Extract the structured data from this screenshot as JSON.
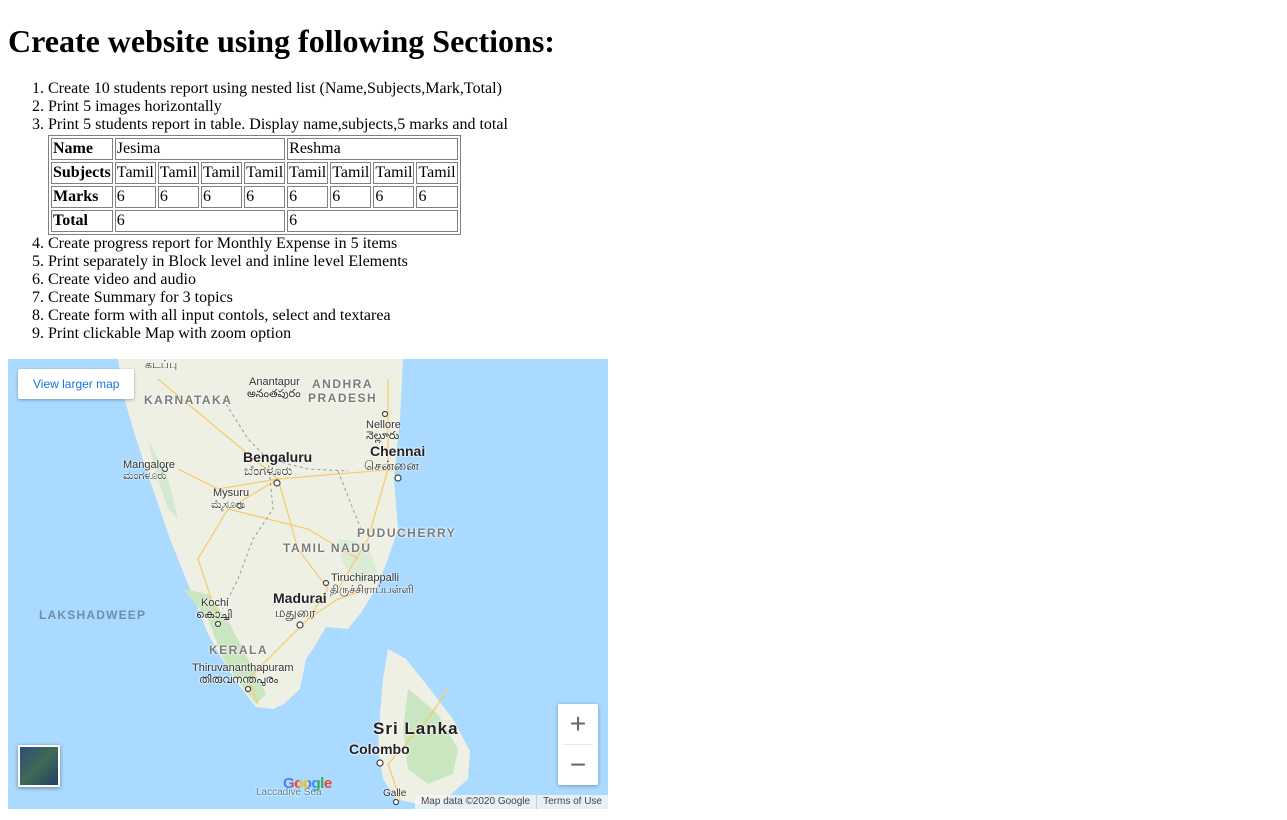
{
  "heading": "Create website using following Sections:",
  "sections": [
    "Create 10 students report using nested list (Name,Subjects,Mark,Total)",
    "Print 5 images horizontally",
    "Print 5 students report in table. Display name,subjects,5 marks and total",
    "Create progress report for Monthly Expense in 5 items",
    "Print separately in Block level and inline level Elements",
    "Create video and audio",
    "Create Summary for 3 topics",
    "Create form with all input contols, select and textarea",
    "Print clickable Map with zoom option"
  ],
  "table": {
    "name_label": "Name",
    "subjects_label": "Subjects",
    "marks_label": "Marks",
    "total_label": "Total",
    "students": [
      {
        "name": "Jesima",
        "subjects": [
          "Tamil",
          "Tamil",
          "Tamil",
          "Tamil"
        ],
        "marks": [
          "6",
          "6",
          "6",
          "6"
        ],
        "total": "6"
      },
      {
        "name": "Reshma",
        "subjects": [
          "Tamil",
          "Tamil",
          "Tamil",
          "Tamil"
        ],
        "marks": [
          "6",
          "6",
          "6",
          "6"
        ],
        "total": "6"
      }
    ]
  },
  "map": {
    "view_larger": "View larger map",
    "zoom_in": "+",
    "zoom_out": "−",
    "logo": "Google",
    "data_credit": "Map data ©2020 Google",
    "terms": "Terms of Use",
    "labels": {
      "top_city": "கடப்பு",
      "anantapur": "Anantapur",
      "anantapur_local": "అనంతపురం",
      "andhra": "ANDHRA",
      "pradesh": "PRADESH",
      "karnataka": "KARNATAKA",
      "nellore": "Nellore",
      "nellore_local": "నెల్లూరు",
      "chennai": "Chennai",
      "chennai_local": "சென்னை",
      "bengaluru": "Bengaluru",
      "bengaluru_local": "ಬೆಂಗಳೂರು",
      "mangalore": "Mangalore",
      "mangalore_local": "ಮಂಗಳೂರು",
      "mysuru": "Mysuru",
      "mysuru_local": "ಮೈಸೂರು",
      "puducherry": "PUDUCHERRY",
      "tamilnadu": "TAMIL NADU",
      "tiruchirappalli": "Tiruchirappalli",
      "tiruchirappalli_local": "திருச்சிராப்பள்ளி",
      "lakshadweep": "LAKSHADWEEP",
      "kochi": "Kochi",
      "kochi_local": "കൊച്ചി",
      "madurai": "Madurai",
      "madurai_local": "மதுரை",
      "kerala": "KERALA",
      "thiruvananthapuram": "Thiruvananthapuram",
      "thiruvananthapuram_local": "തിരുവനന്തപുരം",
      "srilanka": "Sri Lanka",
      "colombo": "Colombo",
      "laccadive": "Laccadive Sea",
      "galle": "Galle"
    }
  }
}
